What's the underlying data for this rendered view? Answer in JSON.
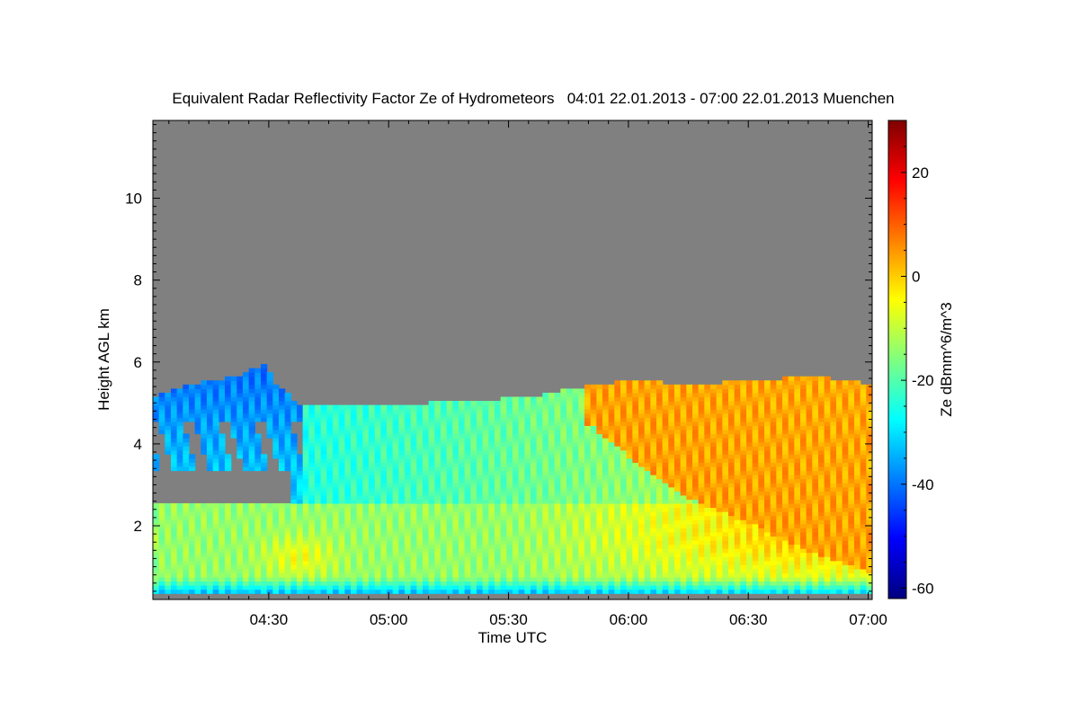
{
  "chart_data": {
    "type": "heatmap",
    "title": "Equivalent Radar Reflectivity Factor Ze of Hydrometeors   04:01 22.01.2013 - 07:00 22.01.2013 Muenchen",
    "xlabel": "Time UTC",
    "ylabel": "Height AGL km",
    "colorbar_label": "Ze dBmm^6/m^3",
    "x_tick_labels": [
      "04:30",
      "05:00",
      "05:30",
      "06:00",
      "06:30",
      "07:00"
    ],
    "x_tick_minutes": [
      270,
      300,
      330,
      360,
      390,
      420
    ],
    "xlim_minutes": [
      241,
      421
    ],
    "y_ticks": [
      2,
      4,
      6,
      8,
      10
    ],
    "ylim": [
      0.2,
      11.9
    ],
    "colorbar_ticks": [
      20,
      0,
      -20,
      -40,
      -60
    ],
    "colorbar_range": [
      -62,
      30
    ],
    "colormap": "jet",
    "background_color": "#808080",
    "features": [
      {
        "label": "low-level stratiform layer",
        "t_start": "04:01",
        "t_end": "07:00",
        "height_km": [
          0.3,
          2.4
        ],
        "ze_dbz": [
          -25,
          5
        ]
      },
      {
        "label": "upper cloud layer",
        "t_start": "04:01",
        "t_end": "04:38",
        "height_km": [
          2.7,
          5.8
        ],
        "ze_dbz": [
          -50,
          -20
        ]
      },
      {
        "label": "fall streaks",
        "t_start": "04:38",
        "t_end": "07:00",
        "height_km": [
          2.0,
          5.6
        ],
        "ze_dbz": [
          -30,
          10
        ]
      },
      {
        "label": "enhanced reflectivity core",
        "t_start": "05:45",
        "t_end": "07:00",
        "height_km": [
          1.0,
          5.0
        ],
        "ze_dbz": [
          0,
          10
        ]
      }
    ]
  }
}
